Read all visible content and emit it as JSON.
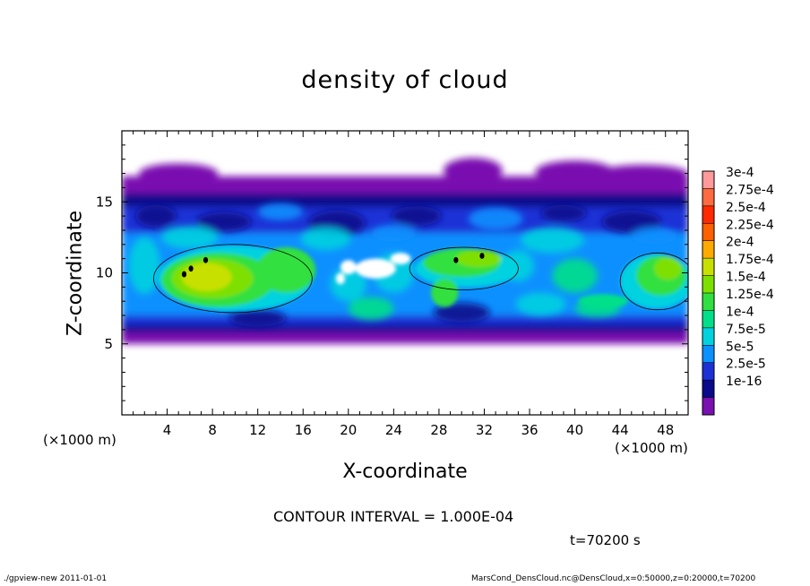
{
  "chart_data": {
    "type": "heatmap",
    "title": "density of cloud",
    "xlabel": "X-coordinate",
    "ylabel": "Z-coordinate",
    "x_unit": "(×1000 m)",
    "y_unit": "(×1000 m)",
    "xlim": [
      0,
      50
    ],
    "ylim": [
      0,
      20
    ],
    "x_ticks": [
      "4",
      "8",
      "12",
      "16",
      "20",
      "24",
      "28",
      "32",
      "36",
      "40",
      "44",
      "48"
    ],
    "y_ticks": [
      "5",
      "10",
      "15"
    ],
    "colorbar": {
      "labels": [
        "3e-4",
        "2.75e-4",
        "2.5e-4",
        "2.25e-4",
        "2e-4",
        "1.75e-4",
        "1.5e-4",
        "1.25e-4",
        "1e-4",
        "7.5e-5",
        "5e-5",
        "2.5e-5",
        "1e-16"
      ],
      "colors": [
        "#ff9a9a",
        "#ff6a40",
        "#ff2a00",
        "#ff6000",
        "#ffaa00",
        "#c8e000",
        "#7ee000",
        "#30e040",
        "#00e08a",
        "#00d2e0",
        "#0a90ff",
        "#1c30d6",
        "#0a0a8c",
        "#7a10b0"
      ]
    },
    "field_regions": [
      {
        "name": "cloud layer",
        "x": [
          0,
          50
        ],
        "z": [
          5,
          16.8
        ],
        "level": "1e-16"
      },
      {
        "name": "high-density core A",
        "x": [
          3,
          17
        ],
        "z": [
          7.5,
          11.5
        ],
        "level": "1.75e-4"
      },
      {
        "name": "high-density core B",
        "x": [
          26,
          35
        ],
        "z": [
          9,
          12
        ],
        "level": "1.5e-4"
      },
      {
        "name": "high-density core C",
        "x": [
          44,
          50
        ],
        "z": [
          7.5,
          11.5
        ],
        "level": "1.5e-4"
      }
    ]
  },
  "text": {
    "contour_interval": "CONTOUR INTERVAL = 1.000E-04",
    "time": "t=70200  s",
    "footer_left": "./gpview-new   2011-01-01",
    "footer_right": "MarsCond_DensCloud.nc@DensCloud,x=0:50000,z=0:20000,t=70200"
  }
}
